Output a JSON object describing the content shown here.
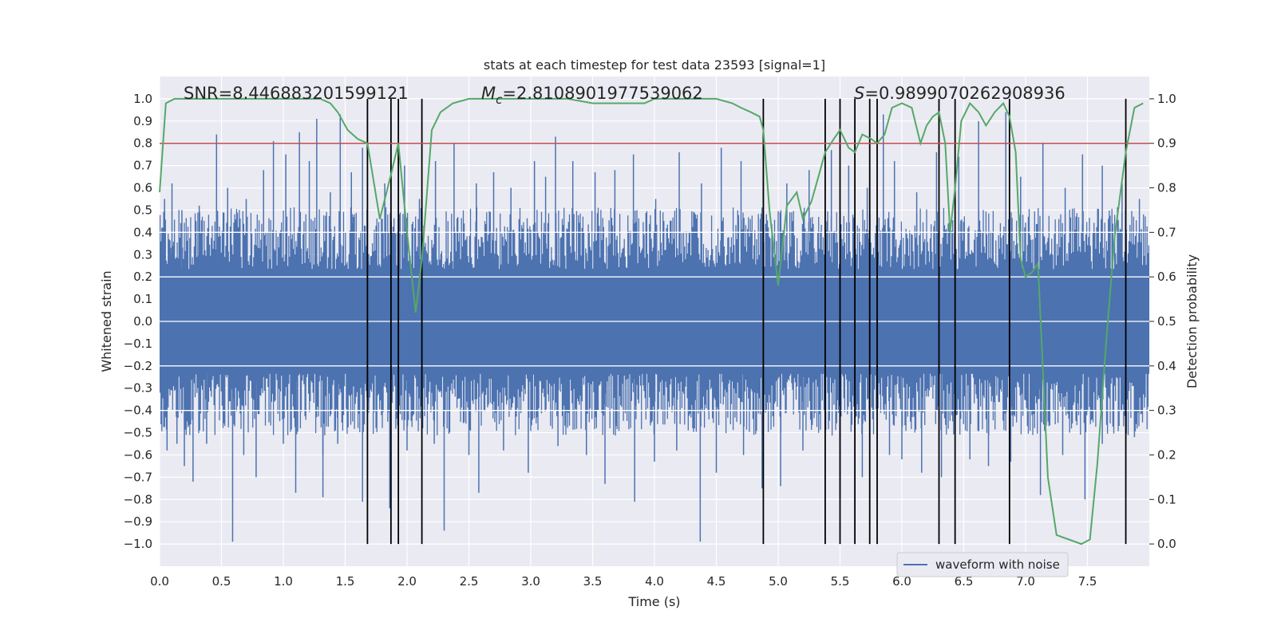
{
  "chart_data": {
    "type": "line",
    "title": "stats at each timestep for test data 23593 [signal=1]",
    "xlabel": "Time (s)",
    "ylabel": "Whitened strain",
    "y2label": "Detection probability",
    "xlim": [
      0,
      8
    ],
    "ylim": [
      -1.1,
      1.1
    ],
    "y2lim": [
      -0.05,
      1.05
    ],
    "grid": true,
    "x_ticks": [
      0,
      0.5,
      1,
      1.5,
      2,
      2.5,
      3,
      3.5,
      4,
      4.5,
      5,
      5.5,
      6,
      6.5,
      7,
      7.5
    ],
    "x_tick_labels": [
      "0.0",
      "0.5",
      "1.0",
      "1.5",
      "2.0",
      "2.5",
      "3.0",
      "3.5",
      "4.0",
      "4.5",
      "5.0",
      "5.5",
      "6.0",
      "6.5",
      "7.0",
      "7.5"
    ],
    "y_ticks": [
      1,
      0.9,
      0.8,
      0.7,
      0.6,
      0.5,
      0.4,
      0.3,
      0.2,
      0.1,
      0,
      -0.1,
      -0.2,
      -0.3,
      -0.4,
      -0.5,
      -0.6,
      -0.7,
      -0.8,
      -0.9,
      -1
    ],
    "y_tick_labels": [
      "1.0",
      "0.9",
      "0.8",
      "0.7",
      "0.6",
      "0.5",
      "0.4",
      "0.3",
      "0.2",
      "0.1",
      "0.0",
      "−0.1",
      "−0.2",
      "−0.3",
      "−0.4",
      "−0.5",
      "−0.6",
      "−0.7",
      "−0.8",
      "−0.9",
      "−1.0"
    ],
    "y2_ticks": [
      1,
      0.9,
      0.8,
      0.7,
      0.6,
      0.5,
      0.4,
      0.3,
      0.2,
      0.1,
      0
    ],
    "y2_tick_labels": [
      "1.0",
      "0.9",
      "0.8",
      "0.7",
      "0.6",
      "0.5",
      "0.4",
      "0.3",
      "0.2",
      "0.1",
      "0.0"
    ],
    "annotations": {
      "snr": "SNR=8.446883201599121",
      "mc_prefix": "M",
      "mc_sub": "c",
      "mc_value": "=2.8108901977539062",
      "s_prefix": "S",
      "s_value": "=0.9899070262908936"
    },
    "legend": {
      "label": "waveform with noise",
      "placement": "lower-right"
    },
    "threshold": {
      "value": 0.9,
      "axis": "y2",
      "color": "#c44e52"
    },
    "event_lines": [
      1.68,
      1.87,
      1.93,
      2.12,
      4.88,
      5.38,
      5.5,
      5.62,
      5.74,
      5.8,
      6.3,
      6.43,
      6.87,
      7.81
    ],
    "waveform": {
      "name": "waveform with noise",
      "color": "#4c72b0",
      "core_amplitude": 0.38,
      "spikes_top": [
        [
          0.04,
          0.55
        ],
        [
          0.1,
          0.62
        ],
        [
          0.18,
          0.5
        ],
        [
          0.32,
          0.52
        ],
        [
          0.46,
          0.84
        ],
        [
          0.55,
          0.6
        ],
        [
          0.7,
          0.55
        ],
        [
          0.84,
          0.68
        ],
        [
          0.92,
          0.81
        ],
        [
          1.02,
          0.75
        ],
        [
          1.13,
          0.85
        ],
        [
          1.21,
          0.72
        ],
        [
          1.27,
          0.91
        ],
        [
          1.38,
          0.58
        ],
        [
          1.46,
          0.93
        ],
        [
          1.55,
          0.67
        ],
        [
          1.64,
          0.78
        ],
        [
          1.82,
          0.62
        ],
        [
          1.87,
          0.9
        ],
        [
          1.98,
          0.7
        ],
        [
          2.1,
          0.55
        ],
        [
          2.23,
          0.72
        ],
        [
          2.38,
          0.8
        ],
        [
          2.56,
          0.62
        ],
        [
          2.7,
          0.67
        ],
        [
          2.84,
          0.6
        ],
        [
          3.03,
          0.72
        ],
        [
          3.12,
          0.65
        ],
        [
          3.2,
          0.83
        ],
        [
          3.34,
          0.72
        ],
        [
          3.52,
          0.67
        ],
        [
          3.68,
          0.68
        ],
        [
          3.83,
          0.75
        ],
        [
          4.01,
          0.55
        ],
        [
          4.2,
          0.76
        ],
        [
          4.38,
          0.62
        ],
        [
          4.54,
          0.78
        ],
        [
          4.7,
          0.72
        ],
        [
          4.88,
          0.8
        ],
        [
          5.07,
          0.62
        ],
        [
          5.25,
          0.68
        ],
        [
          5.43,
          0.77
        ],
        [
          5.57,
          0.7
        ],
        [
          5.72,
          0.6
        ],
        [
          5.85,
          0.93
        ],
        [
          5.94,
          0.72
        ],
        [
          6.12,
          0.58
        ],
        [
          6.28,
          0.76
        ],
        [
          6.46,
          0.74
        ],
        [
          6.62,
          0.9
        ],
        [
          6.84,
          0.94
        ],
        [
          6.96,
          0.65
        ],
        [
          7.14,
          0.8
        ],
        [
          7.32,
          0.6
        ],
        [
          7.46,
          0.75
        ],
        [
          7.62,
          0.7
        ],
        [
          7.78,
          0.62
        ],
        [
          7.92,
          0.55
        ]
      ],
      "spikes_bottom": [
        [
          0.06,
          -0.58
        ],
        [
          0.14,
          -0.55
        ],
        [
          0.2,
          -0.65
        ],
        [
          0.27,
          -0.72
        ],
        [
          0.38,
          -0.55
        ],
        [
          0.59,
          -0.99
        ],
        [
          0.68,
          -0.6
        ],
        [
          0.78,
          -0.7
        ],
        [
          1.0,
          -0.55
        ],
        [
          1.1,
          -0.77
        ],
        [
          1.32,
          -0.6
        ],
        [
          1.32,
          -0.79
        ],
        [
          1.44,
          -0.55
        ],
        [
          1.64,
          -0.81
        ],
        [
          1.86,
          -0.84
        ],
        [
          2.0,
          -0.58
        ],
        [
          2.22,
          -0.55
        ],
        [
          2.3,
          -0.94
        ],
        [
          2.5,
          -0.6
        ],
        [
          2.58,
          -0.77
        ],
        [
          2.78,
          -0.58
        ],
        [
          2.98,
          -0.68
        ],
        [
          3.22,
          -0.56
        ],
        [
          3.45,
          -0.6
        ],
        [
          3.6,
          -0.73
        ],
        [
          3.84,
          -0.81
        ],
        [
          4.0,
          -0.63
        ],
        [
          4.18,
          -0.58
        ],
        [
          4.37,
          -0.99
        ],
        [
          4.5,
          -0.68
        ],
        [
          4.72,
          -0.6
        ],
        [
          4.87,
          -0.75
        ],
        [
          5.02,
          -0.74
        ],
        [
          5.2,
          -0.58
        ],
        [
          5.5,
          -0.79
        ],
        [
          5.68,
          -0.7
        ],
        [
          5.9,
          -0.6
        ],
        [
          6.0,
          -0.62
        ],
        [
          6.16,
          -0.68
        ],
        [
          6.32,
          -0.7
        ],
        [
          6.55,
          -0.62
        ],
        [
          6.7,
          -0.65
        ],
        [
          6.88,
          -0.63
        ],
        [
          7.12,
          -0.78
        ],
        [
          7.3,
          -0.6
        ],
        [
          7.48,
          -0.8
        ],
        [
          7.62,
          -0.55
        ],
        [
          7.88,
          -0.52
        ]
      ]
    },
    "series": [
      {
        "name": "detection probability",
        "axis": "y2",
        "color": "#55a868",
        "x": [
          0.0,
          0.05,
          0.12,
          0.3,
          0.5,
          0.8,
          1.0,
          1.2,
          1.3,
          1.38,
          1.44,
          1.52,
          1.6,
          1.68,
          1.78,
          1.87,
          1.93,
          2.0,
          2.07,
          2.12,
          2.2,
          2.27,
          2.37,
          2.5,
          2.7,
          3.0,
          3.3,
          3.5,
          3.8,
          3.92,
          4.0,
          4.3,
          4.5,
          4.63,
          4.7,
          4.78,
          4.85,
          4.88,
          4.93,
          5.0,
          5.07,
          5.15,
          5.2,
          5.27,
          5.33,
          5.38,
          5.45,
          5.5,
          5.57,
          5.62,
          5.68,
          5.75,
          5.8,
          5.86,
          5.92,
          6.0,
          6.08,
          6.15,
          6.2,
          6.25,
          6.3,
          6.35,
          6.39,
          6.43,
          6.48,
          6.55,
          6.62,
          6.68,
          6.75,
          6.82,
          6.87,
          6.92,
          6.96,
          7.0,
          7.05,
          7.1,
          7.18,
          7.25,
          7.35,
          7.45,
          7.52,
          7.58,
          7.65,
          7.72,
          7.81,
          7.88,
          7.95
        ],
        "y": [
          0.79,
          0.99,
          1.0,
          1.0,
          1.0,
          1.0,
          1.0,
          1.0,
          1.0,
          0.99,
          0.97,
          0.93,
          0.91,
          0.9,
          0.73,
          0.83,
          0.9,
          0.7,
          0.52,
          0.64,
          0.93,
          0.97,
          0.99,
          1.0,
          1.0,
          1.0,
          1.0,
          0.99,
          0.99,
          0.99,
          1.0,
          1.0,
          1.0,
          0.99,
          0.98,
          0.97,
          0.96,
          0.93,
          0.75,
          0.58,
          0.76,
          0.79,
          0.73,
          0.77,
          0.83,
          0.88,
          0.91,
          0.93,
          0.89,
          0.88,
          0.92,
          0.91,
          0.9,
          0.92,
          0.98,
          0.99,
          0.98,
          0.9,
          0.94,
          0.96,
          0.97,
          0.9,
          0.7,
          0.8,
          0.95,
          0.99,
          0.97,
          0.94,
          0.97,
          0.99,
          0.96,
          0.88,
          0.64,
          0.6,
          0.61,
          0.63,
          0.15,
          0.02,
          0.01,
          0.0,
          0.01,
          0.18,
          0.45,
          0.69,
          0.88,
          0.98,
          0.99
        ]
      }
    ]
  }
}
